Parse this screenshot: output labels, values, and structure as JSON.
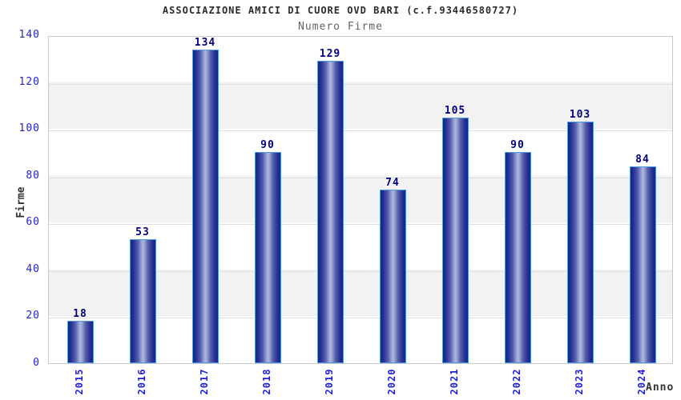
{
  "chart_data": {
    "type": "bar",
    "title": "ASSOCIAZIONE AMICI DI CUORE OVD BARI (c.f.93446580727)",
    "subtitle": "Numero Firme",
    "categories": [
      "2015",
      "2016",
      "2017",
      "2018",
      "2019",
      "2020",
      "2021",
      "2022",
      "2023",
      "2024"
    ],
    "values": [
      18,
      53,
      134,
      90,
      129,
      74,
      105,
      90,
      103,
      84
    ],
    "xlabel": "Anno",
    "ylabel": "Firme",
    "ylim": [
      0,
      140
    ],
    "yticks": [
      0,
      20,
      40,
      60,
      80,
      100,
      120,
      140
    ],
    "grid": "horizontal-bands-alternating",
    "legend": "none"
  },
  "colors": {
    "band_white": "#ffffff",
    "band_gray": "#f2f2f2",
    "gridline": "#dedede",
    "plot_border": "#c9c9c9",
    "bar_border": "#4d9ade",
    "bar_edge_dark": "#1c2383",
    "bar_mid": "#5560ae",
    "bar_highlight": "#aeb7de",
    "tick_label_blue": "#1f1fd8",
    "value_label_navy": "#000080",
    "title_color": "#2b2b2b",
    "subtitle_color": "#636363",
    "axis_title_color": "#333333"
  }
}
